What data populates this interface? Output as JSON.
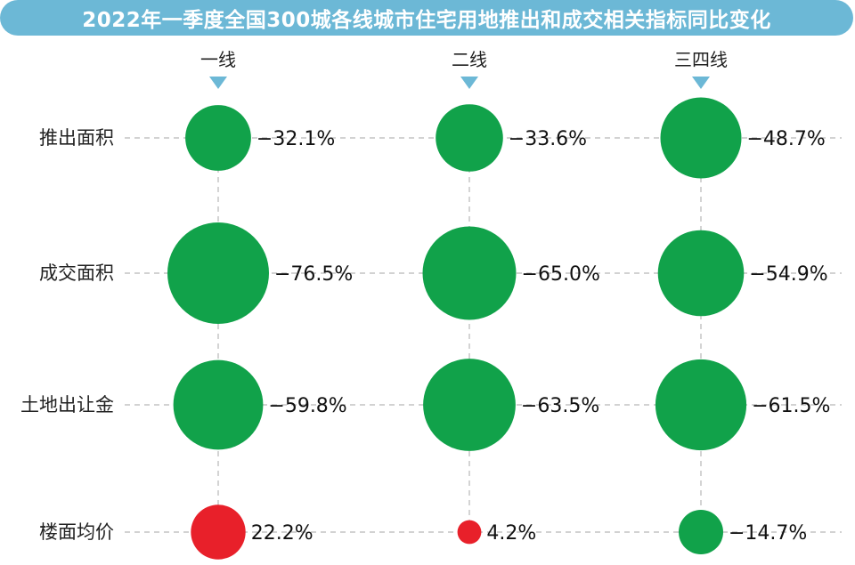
{
  "chart_data": {
    "type": "scatter",
    "title": "2022年一季度全国300城各线城市住宅用地推出和成交相关指标同比变化",
    "columns": [
      "一线",
      "二线",
      "三四线"
    ],
    "rows": [
      "推出面积",
      "成交面积",
      "土地出让金",
      "楼面均价"
    ],
    "cells": [
      [
        {
          "value": -32.1,
          "label": "−32.1%"
        },
        {
          "value": -33.6,
          "label": "−33.6%"
        },
        {
          "value": -48.7,
          "label": "−48.7%"
        }
      ],
      [
        {
          "value": -76.5,
          "label": "−76.5%"
        },
        {
          "value": -65.0,
          "label": "−65.0%"
        },
        {
          "value": -54.9,
          "label": "−54.9%"
        }
      ],
      [
        {
          "value": -59.8,
          "label": "−59.8%"
        },
        {
          "value": -63.5,
          "label": "−63.5%"
        },
        {
          "value": -61.5,
          "label": "−61.5%"
        }
      ],
      [
        {
          "value": 22.2,
          "label": "22.2%"
        },
        {
          "value": 4.2,
          "label": "4.2%"
        },
        {
          "value": -14.7,
          "label": "−14.7%"
        }
      ]
    ],
    "colors": {
      "negative": "#11a24a",
      "positive": "#e8202a",
      "marker": "#6cb8d6",
      "gridline": "#b8b8b8"
    }
  }
}
